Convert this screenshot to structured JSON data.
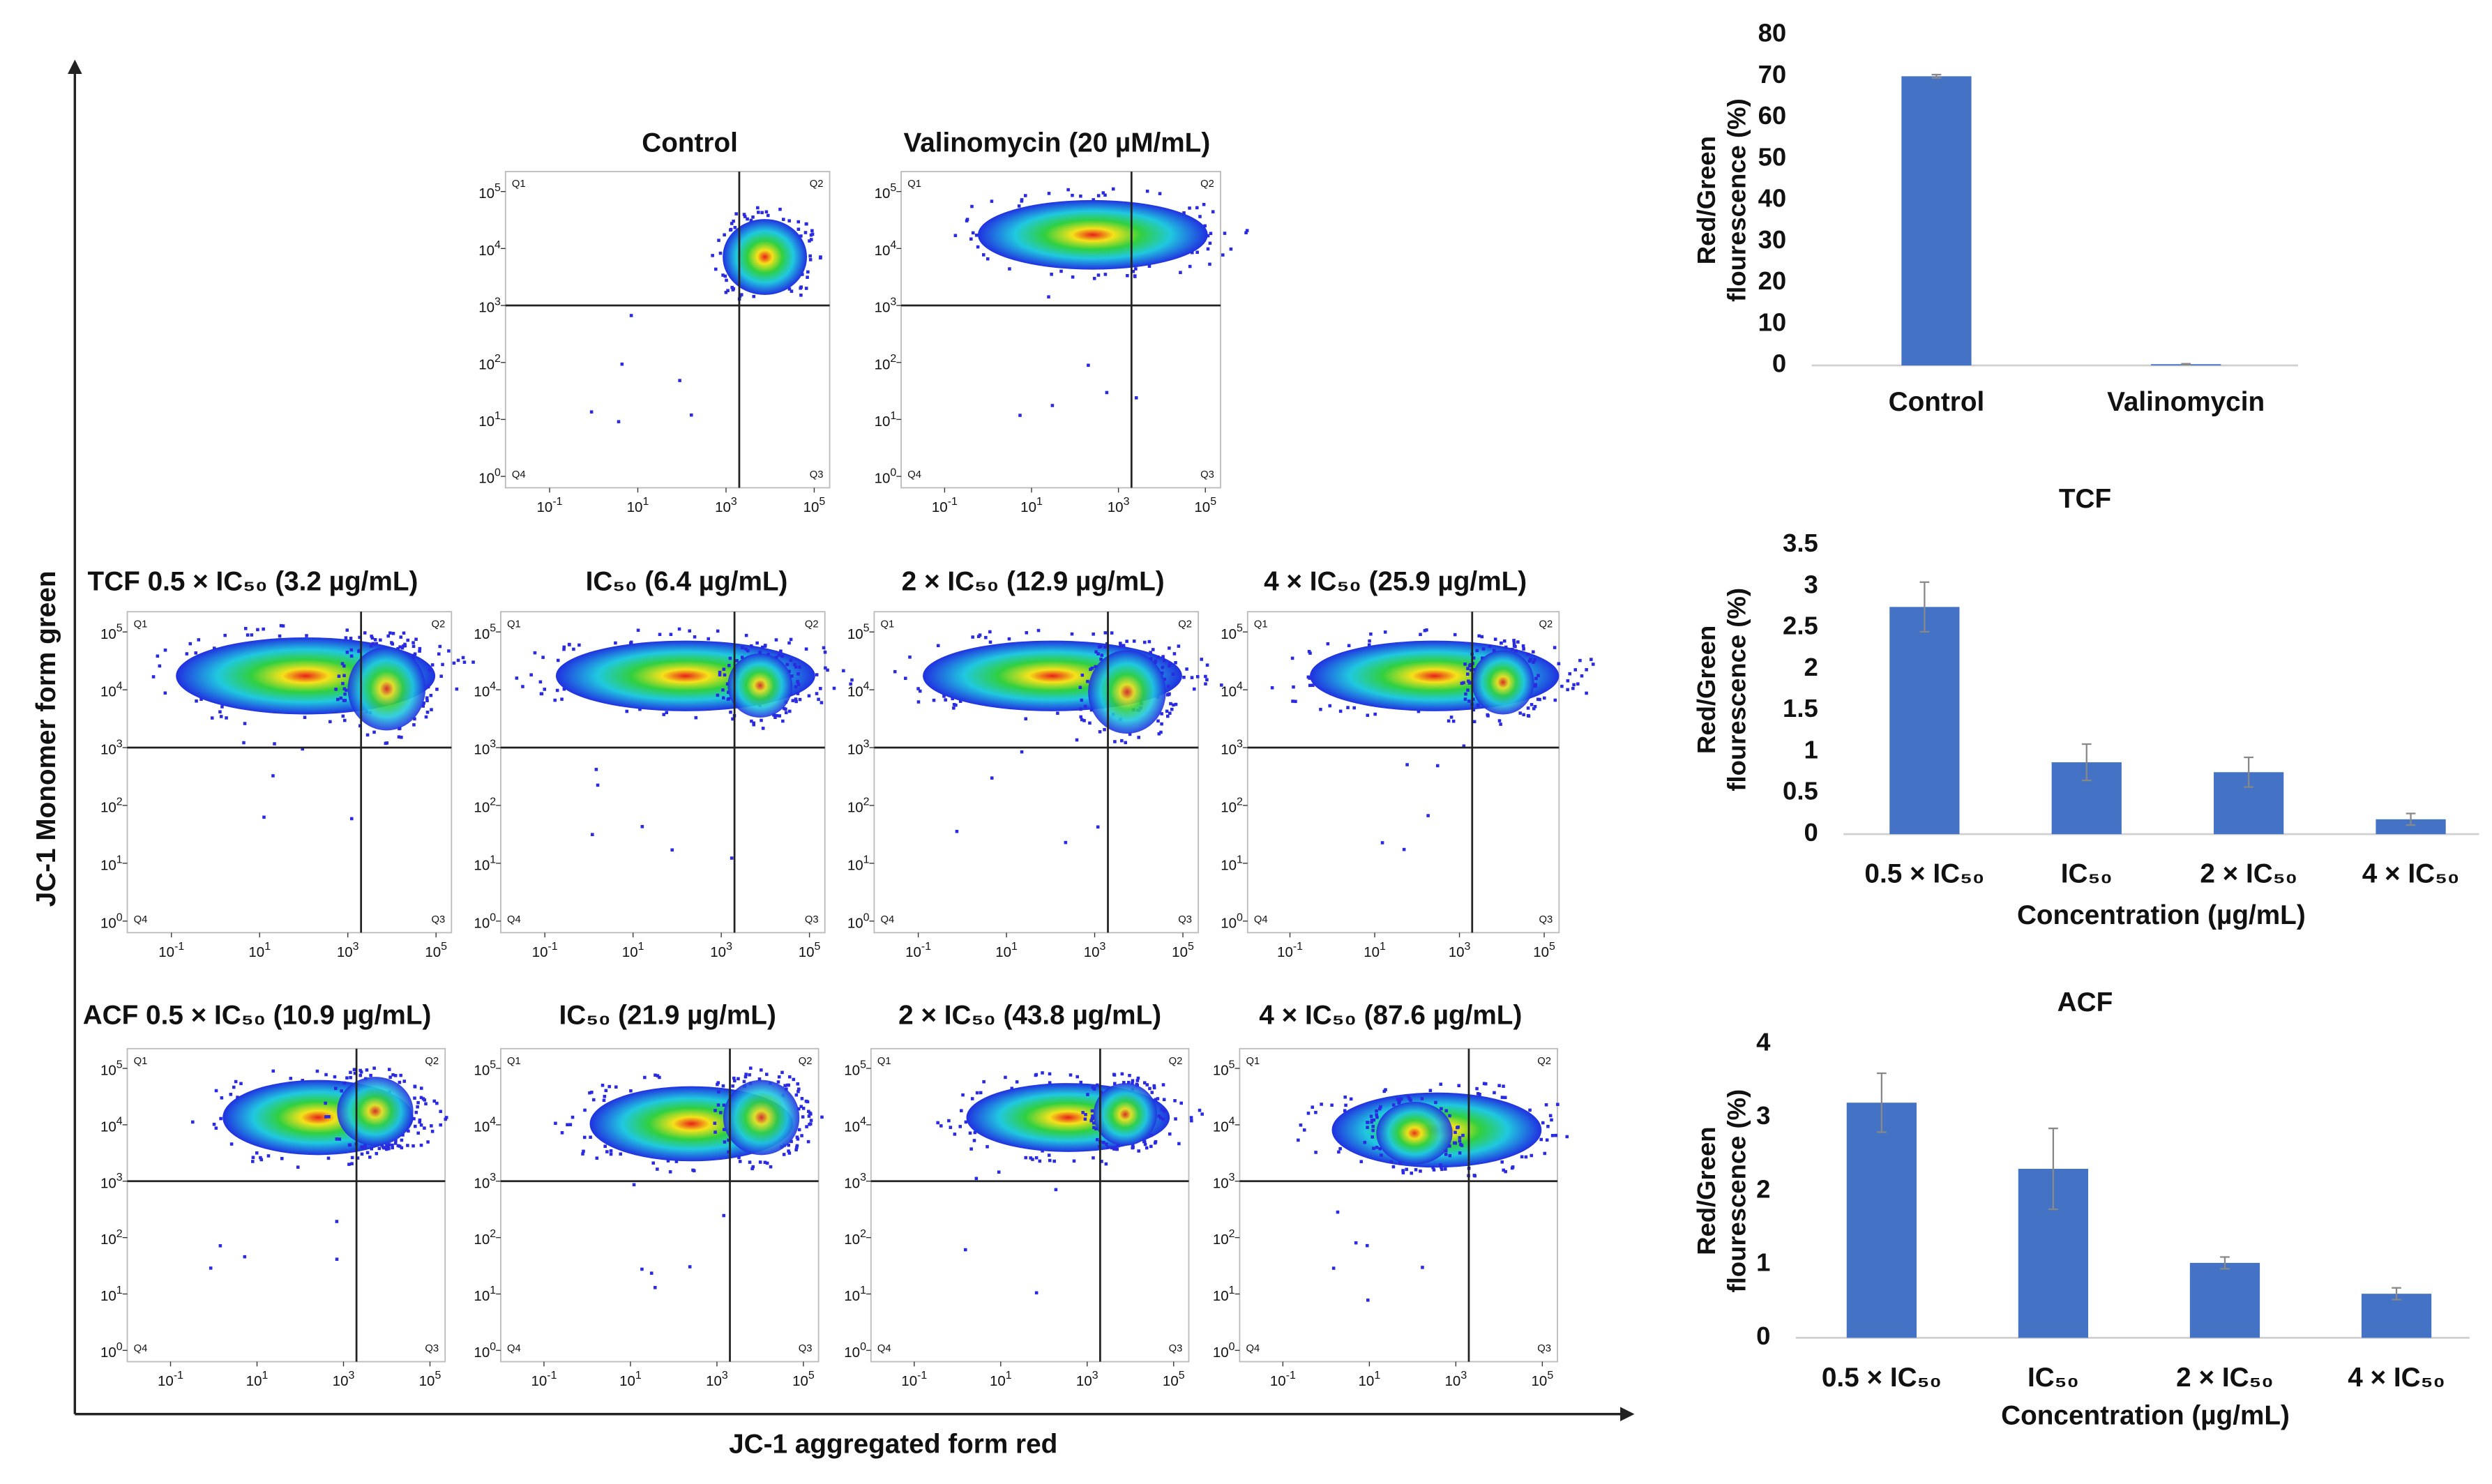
{
  "figure": {
    "y_label": "JC-1 Monomer form green",
    "x_label": "JC-1 aggregated form red"
  },
  "flow": {
    "tick_base": "10",
    "xtick_exponents": [
      -1,
      1,
      3,
      5
    ],
    "ytick_exponents": [
      0,
      1,
      2,
      3,
      4,
      5
    ],
    "xlim": [
      -2,
      5.35
    ],
    "ylim": [
      -0.2,
      5.35
    ],
    "gate": [
      3.3,
      3
    ],
    "quadrants": [
      "Q1",
      "Q2",
      "Q3",
      "Q4"
    ],
    "panels": [
      {
        "title": "Control"
      },
      {
        "title": "Valinomycin (20 µM/mL)"
      },
      {
        "title": "TCF  0.5 × IC₅₀ (3.2 µg/mL)"
      },
      {
        "title": "IC₅₀ (6.4 µg/mL)"
      },
      {
        "title": "2 × IC₅₀ (12.9 µg/mL)"
      },
      {
        "title": "4 × IC₅₀ (25.9 µg/mL)"
      },
      {
        "title": "ACF 0.5 × IC₅₀ (10.9 µg/mL)"
      },
      {
        "title": "IC₅₀ (21.9 µg/mL)"
      },
      {
        "title": "2 × IC₅₀ (43.8 µg/mL)"
      },
      {
        "title": "4 × IC₅₀ (87.6 µg/mL)"
      }
    ]
  },
  "chart_data": [
    {
      "type": "bar",
      "y_label": [
        "Red/Green",
        "flourescence (%)"
      ],
      "color": "#4472c4",
      "categories": [
        "Control",
        "Valinomycin"
      ],
      "values": [
        70,
        0.3
      ],
      "errors": [
        0.4,
        0.1
      ],
      "ylim": [
        0,
        80
      ],
      "yticks": [
        0,
        10,
        20,
        30,
        40,
        50,
        60,
        70,
        80
      ]
    },
    {
      "type": "bar",
      "title": "TCF",
      "y_label": [
        "Red/Green",
        "flourescence (%)"
      ],
      "x_label": "Concentration (µg/mL)",
      "color": "#4472c4",
      "categories": [
        "0.5 × IC₅₀",
        "IC₅₀",
        "2 × IC₅₀",
        "4 × IC₅₀"
      ],
      "values": [
        2.75,
        0.87,
        0.75,
        0.18
      ],
      "errors": [
        0.3,
        0.22,
        0.18,
        0.07
      ],
      "ylim": [
        0,
        3.5
      ],
      "yticks": [
        0,
        0.5,
        1,
        1.5,
        2,
        2.5,
        3,
        3.5
      ]
    },
    {
      "type": "bar",
      "title": "ACF",
      "y_label": [
        "Red/Green",
        "flourescence (%)"
      ],
      "x_label": "Concentration (µg/mL)",
      "color": "#4472c4",
      "categories": [
        "0.5 × IC₅₀",
        "IC₅₀",
        "2 × IC₅₀",
        "4 × IC₅₀"
      ],
      "values": [
        3.2,
        2.3,
        1.02,
        0.6
      ],
      "errors": [
        0.4,
        0.55,
        0.08,
        0.08
      ],
      "ylim": [
        0,
        4
      ],
      "yticks": [
        0,
        1,
        2,
        3,
        4
      ]
    }
  ]
}
